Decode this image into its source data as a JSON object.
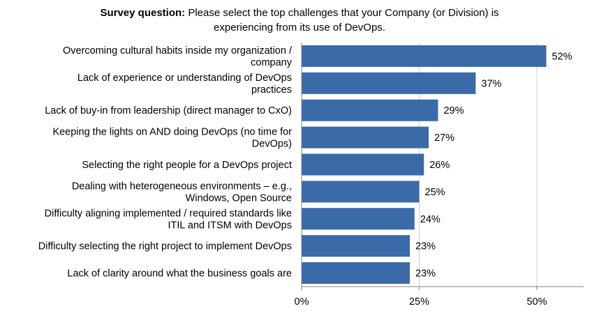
{
  "title": {
    "prefix": "Survey question:",
    "line1": "Please select the top challenges that your Company (or Division) is",
    "line2": "experiencing from its use of DevOps."
  },
  "chart_data": {
    "type": "bar",
    "orientation": "horizontal",
    "categories": [
      [
        "Overcoming cultural habits inside my organization /",
        "company"
      ],
      [
        "Lack of experience or understanding of DevOps",
        "practices"
      ],
      [
        "Lack of buy-in from leadership (direct manager to CxO)"
      ],
      [
        "Keeping the lights on AND doing DevOps (no time for",
        "DevOps)"
      ],
      [
        "Selecting the right people for a DevOps project"
      ],
      [
        "Dealing with heterogeneous environments – e.g.,",
        "Windows, Open Source"
      ],
      [
        "Difficulty aligning implemented / required standards like",
        "ITIL and ITSM with DevOps"
      ],
      [
        "Difficulty selecting the right project to implement DevOps"
      ],
      [
        "Lack of clarity around what the business goals are"
      ]
    ],
    "values": [
      52,
      37,
      29,
      27,
      26,
      25,
      24,
      23,
      23
    ],
    "value_labels": [
      "52%",
      "37%",
      "29%",
      "27%",
      "26%",
      "25%",
      "24%",
      "23%",
      "23%"
    ],
    "xlim": [
      0,
      60
    ],
    "xticks": [
      0,
      25,
      50
    ],
    "xtick_labels": [
      "0%",
      "25%",
      "50%"
    ],
    "grid": "vertical",
    "bar_color": "#3a6aa8",
    "grid_color": "#d0d0d0",
    "axis_color": "#808080"
  }
}
